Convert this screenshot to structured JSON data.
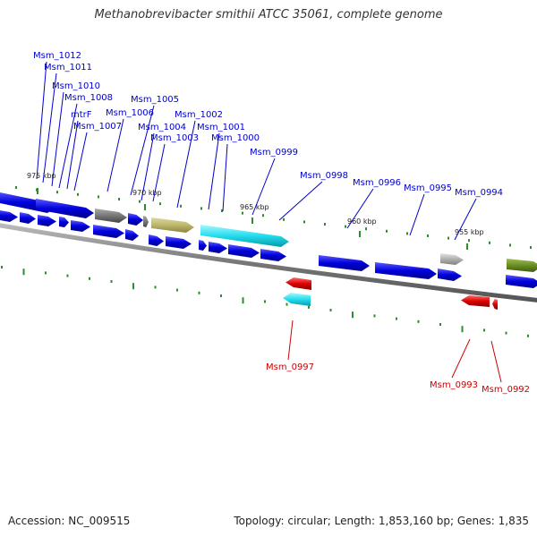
{
  "title": "Methanobrevibacter smithii ATCC 35061, complete genome",
  "footer": {
    "accession": "Accession: NC_009515",
    "topology": "Topology: circular; Length: 1,853,160 bp; Genes: 1,835"
  },
  "ticks": [
    "975 kbp",
    "970 kbp",
    "965 kbp",
    "960 kbp",
    "955 kbp"
  ],
  "colors": {
    "forward_cds": "#0000dd",
    "reverse_cds": "#dd0000",
    "label_forward": "#0000cc",
    "label_reverse": "#cc0000",
    "backbone": "#888888",
    "tick": "#2e8b2e",
    "rna_cyan": "#22ddee",
    "pseudo_gray": "#777777",
    "olive": "#bdb76b",
    "green": "#6b8e23",
    "light_gray": "#b0b0b0"
  },
  "forward_labels": [
    "Msm_1012",
    "Msm_1011",
    "Msm_1010",
    "Msm_1008",
    "mtrF",
    "Msm_1007",
    "Msm_1006",
    "Msm_1005",
    "Msm_1004",
    "Msm_1003",
    "Msm_1002",
    "Msm_1001",
    "Msm_1000",
    "Msm_0999",
    "Msm_0998",
    "Msm_0996",
    "Msm_0995",
    "Msm_0994"
  ],
  "reverse_labels": [
    "Msm_0997",
    "Msm_0993",
    "Msm_0992"
  ]
}
